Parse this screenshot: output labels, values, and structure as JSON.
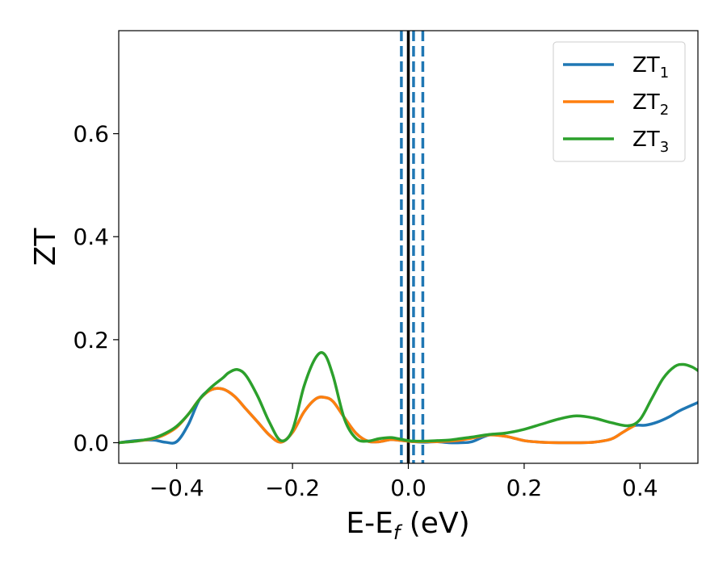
{
  "chart_data": {
    "type": "line",
    "title": "",
    "xlabel": "E-E",
    "xlabel_sub": "f",
    "xlabel_unit": " (eV)",
    "ylabel": "ZT",
    "xlim": [
      -0.5,
      0.5
    ],
    "ylim": [
      -0.04,
      0.8
    ],
    "xticks": [
      -0.4,
      -0.2,
      0.0,
      0.2,
      0.4
    ],
    "xtick_labels": [
      "−0.4",
      "−0.2",
      "0.0",
      "0.2",
      "0.4"
    ],
    "yticks": [
      0.0,
      0.2,
      0.4,
      0.6
    ],
    "ytick_labels": [
      "0.0",
      "0.2",
      "0.4",
      "0.6"
    ],
    "grid": false,
    "legend_position": "top-right",
    "vlines": [
      {
        "x": 0.0,
        "color": "#000000",
        "style": "solid"
      },
      {
        "x": -0.012,
        "color": "#1f77b4",
        "style": "dashed"
      },
      {
        "x": 0.009,
        "color": "#1f77b4",
        "style": "dashed"
      },
      {
        "x": 0.025,
        "color": "#1f77b4",
        "style": "dashed"
      }
    ],
    "series": [
      {
        "name": "ZT",
        "name_sub": "1",
        "color": "#1f77b4",
        "x": [
          -0.5,
          -0.47,
          -0.44,
          -0.42,
          -0.4,
          -0.38,
          -0.36,
          -0.34,
          -0.32,
          -0.3,
          -0.28,
          -0.26,
          -0.24,
          -0.22,
          -0.2,
          -0.18,
          -0.16,
          -0.145,
          -0.13,
          -0.11,
          -0.09,
          -0.07,
          -0.05,
          -0.03,
          -0.01,
          0.0,
          0.01,
          0.03,
          0.05,
          0.07,
          0.09,
          0.11,
          0.14,
          0.17,
          0.2,
          0.23,
          0.26,
          0.29,
          0.32,
          0.35,
          0.37,
          0.39,
          0.41,
          0.43,
          0.45,
          0.47,
          0.5
        ],
        "y": [
          0.0,
          0.004,
          0.005,
          0.001,
          0.002,
          0.035,
          0.085,
          0.103,
          0.104,
          0.09,
          0.065,
          0.04,
          0.015,
          0.001,
          0.02,
          0.06,
          0.085,
          0.088,
          0.08,
          0.048,
          0.018,
          0.003,
          0.002,
          0.006,
          0.004,
          0.003,
          0.002,
          0.001,
          0.002,
          0.0,
          0.0,
          0.002,
          0.015,
          0.012,
          0.004,
          0.001,
          0.0,
          0.0,
          0.001,
          0.007,
          0.02,
          0.033,
          0.034,
          0.04,
          0.05,
          0.063,
          0.078
        ]
      },
      {
        "name": "ZT",
        "name_sub": "2",
        "color": "#ff7f0e",
        "x": [
          -0.5,
          -0.47,
          -0.44,
          -0.42,
          -0.4,
          -0.38,
          -0.36,
          -0.34,
          -0.32,
          -0.3,
          -0.28,
          -0.26,
          -0.24,
          -0.22,
          -0.2,
          -0.18,
          -0.16,
          -0.145,
          -0.13,
          -0.11,
          -0.09,
          -0.07,
          -0.05,
          -0.03,
          -0.01,
          0.0,
          0.01,
          0.03,
          0.05,
          0.07,
          0.09,
          0.11,
          0.14,
          0.17,
          0.2,
          0.23,
          0.26,
          0.29,
          0.32,
          0.35,
          0.37,
          0.39
        ],
        "y": [
          0.0,
          0.003,
          0.008,
          0.016,
          0.03,
          0.055,
          0.085,
          0.103,
          0.104,
          0.09,
          0.065,
          0.04,
          0.015,
          0.001,
          0.02,
          0.06,
          0.085,
          0.088,
          0.08,
          0.048,
          0.018,
          0.003,
          0.002,
          0.006,
          0.004,
          0.003,
          0.002,
          0.002,
          0.002,
          0.003,
          0.005,
          0.009,
          0.015,
          0.012,
          0.004,
          0.001,
          0.0,
          0.0,
          0.001,
          0.007,
          0.02,
          0.033
        ]
      },
      {
        "name": "ZT",
        "name_sub": "3",
        "color": "#2ca02c",
        "x": [
          -0.5,
          -0.47,
          -0.44,
          -0.42,
          -0.4,
          -0.38,
          -0.36,
          -0.34,
          -0.32,
          -0.31,
          -0.295,
          -0.28,
          -0.26,
          -0.24,
          -0.22,
          -0.2,
          -0.18,
          -0.16,
          -0.145,
          -0.13,
          -0.11,
          -0.09,
          -0.07,
          -0.05,
          -0.03,
          -0.01,
          0.0,
          0.01,
          0.03,
          0.05,
          0.07,
          0.09,
          0.11,
          0.14,
          0.17,
          0.2,
          0.23,
          0.26,
          0.29,
          0.32,
          0.35,
          0.38,
          0.4,
          0.42,
          0.44,
          0.46,
          0.475,
          0.49,
          0.5
        ],
        "y": [
          0.0,
          0.003,
          0.009,
          0.018,
          0.032,
          0.055,
          0.085,
          0.108,
          0.126,
          0.136,
          0.142,
          0.13,
          0.09,
          0.04,
          0.004,
          0.025,
          0.11,
          0.165,
          0.172,
          0.13,
          0.045,
          0.008,
          0.003,
          0.008,
          0.01,
          0.006,
          0.004,
          0.003,
          0.003,
          0.004,
          0.005,
          0.008,
          0.011,
          0.016,
          0.019,
          0.026,
          0.036,
          0.046,
          0.052,
          0.048,
          0.039,
          0.033,
          0.045,
          0.085,
          0.125,
          0.148,
          0.152,
          0.147,
          0.14
        ]
      }
    ]
  }
}
